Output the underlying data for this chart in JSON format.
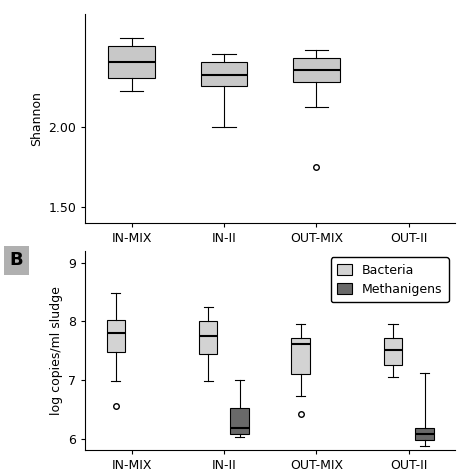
{
  "panel_A": {
    "categories": [
      "IN-MIX",
      "IN-II",
      "OUT-MIX",
      "OUT-II"
    ],
    "ylabel": "Shannon",
    "ylim": [
      1.4,
      2.7
    ],
    "yticks": [
      1.5,
      2.0
    ],
    "boxes": [
      {
        "q1": 2.3,
        "median": 2.4,
        "q3": 2.5,
        "whislo": 2.22,
        "whishi": 2.55,
        "fliers": []
      },
      {
        "q1": 2.25,
        "median": 2.32,
        "q3": 2.4,
        "whislo": 2.0,
        "whishi": 2.45,
        "fliers": []
      },
      {
        "q1": 2.28,
        "median": 2.35,
        "q3": 2.43,
        "whislo": 2.12,
        "whishi": 2.48,
        "fliers": [
          1.75
        ]
      },
      {
        "q1": null,
        "median": null,
        "q3": null,
        "whislo": null,
        "whishi": null,
        "fliers": []
      }
    ]
  },
  "panel_B": {
    "categories": [
      "IN-MIX",
      "IN-II",
      "OUT-MIX",
      "OUT-II"
    ],
    "ylabel": "log copies/ml sludge",
    "ylim": [
      5.8,
      9.2
    ],
    "yticks": [
      6,
      7,
      8,
      9
    ],
    "bacteria_color": "#d3d3d3",
    "methanigens_color": "#696969",
    "bacteria_boxes": [
      {
        "q1": 7.48,
        "median": 7.8,
        "q3": 8.02,
        "whislo": 6.98,
        "whishi": 8.48,
        "fliers": [
          6.55
        ]
      },
      {
        "q1": 7.45,
        "median": 7.75,
        "q3": 8.0,
        "whislo": 6.98,
        "whishi": 8.25,
        "fliers": []
      },
      {
        "q1": 7.1,
        "median": 7.62,
        "q3": 7.72,
        "whislo": 6.72,
        "whishi": 7.95,
        "fliers": [
          6.42
        ]
      },
      {
        "q1": 7.25,
        "median": 7.52,
        "q3": 7.72,
        "whislo": 7.05,
        "whishi": 7.95,
        "fliers": []
      }
    ],
    "methanigens_boxes": [
      {
        "q1": null,
        "median": null,
        "q3": null,
        "whislo": null,
        "whishi": null,
        "fliers": []
      },
      {
        "q1": 6.08,
        "median": 6.18,
        "q3": 6.52,
        "whislo": 6.02,
        "whishi": 7.0,
        "fliers": []
      },
      {
        "q1": null,
        "median": null,
        "q3": null,
        "whislo": null,
        "whishi": null,
        "fliers": []
      },
      {
        "q1": 5.98,
        "median": 6.08,
        "q3": 6.18,
        "whislo": 5.88,
        "whishi": 7.12,
        "fliers": []
      }
    ]
  },
  "box_color_A": "#c8c8c8",
  "median_color": "#000000",
  "whisker_color": "#000000",
  "flier_color": "#000000",
  "background_color": "#ffffff",
  "label_fontsize": 9,
  "tick_fontsize": 9,
  "panel_label_fontsize": 13,
  "legend_fontsize": 9
}
